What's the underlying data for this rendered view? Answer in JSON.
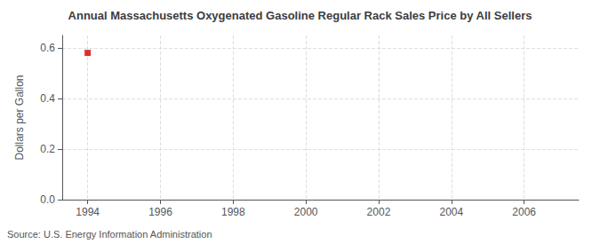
{
  "chart_data": {
    "type": "scatter",
    "title": "Annual Massachusetts Oxygenated Gasoline Regular Rack Sales Price by All Sellers",
    "ylabel": "Dollars per Gallon",
    "source": "Source: U.S. Energy Information Administration",
    "x": [
      1994
    ],
    "values": [
      0.581
    ],
    "color": "#cc0000",
    "marker": "square",
    "xlim": [
      1993.3,
      2007.5
    ],
    "xticks": [
      1994,
      1996,
      1998,
      2000,
      2002,
      2004,
      2006
    ],
    "ylim": [
      0.0,
      0.65
    ],
    "yticks": [
      {
        "value": 0.0,
        "label": "0.0"
      },
      0.2,
      0.4,
      0.6
    ],
    "grid": true
  }
}
